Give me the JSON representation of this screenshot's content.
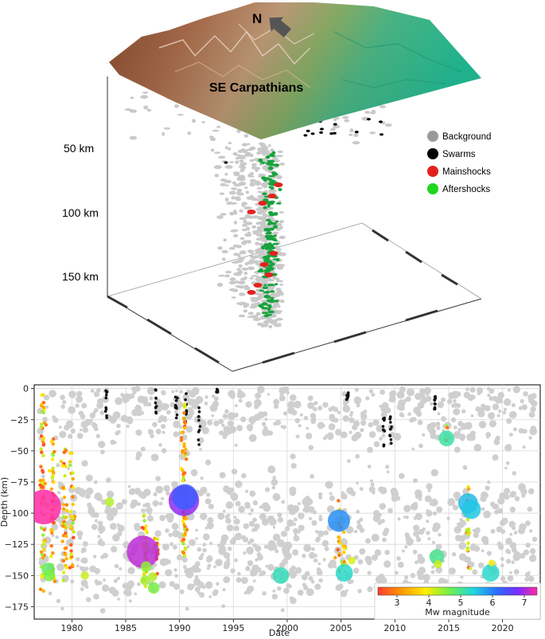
{
  "chart_data": [
    {
      "type": "scatter",
      "title": "",
      "region_label": "SE Carpathians",
      "north_label": "N",
      "depth_ticks": [
        "50 km",
        "100 km",
        "150 km"
      ],
      "legend": [
        {
          "name": "Background",
          "color": "#9a9a9a"
        },
        {
          "name": "Swarms",
          "color": "#000000"
        },
        {
          "name": "Mainshocks",
          "color": "#e3211c"
        },
        {
          "name": "Aftershocks",
          "color": "#1ed61e"
        }
      ]
    },
    {
      "type": "scatter",
      "xlabel": "Date",
      "ylabel": "Depth (km)",
      "xlim": [
        1976.5,
        2023.5
      ],
      "ylim": [
        -185,
        3
      ],
      "x_ticks": [
        1980,
        1985,
        1990,
        1995,
        2000,
        2005,
        2010,
        2015,
        2020
      ],
      "y_ticks": [
        0,
        -25,
        -50,
        -75,
        -100,
        -125,
        -150,
        -175
      ],
      "grid": true,
      "colorbar": {
        "label": "Mw magnitude",
        "range": [
          2.4,
          7.4
        ],
        "ticks": [
          3,
          4,
          5,
          6,
          7
        ]
      },
      "events": [
        {
          "x": 1977.4,
          "y": -95,
          "mag": 7.4
        },
        {
          "x": 1986.6,
          "y": -131,
          "mag": 7.1
        },
        {
          "x": 1990.4,
          "y": -90,
          "mag": 6.9
        },
        {
          "x": 1990.5,
          "y": -87,
          "mag": 6.3
        },
        {
          "x": 2004.8,
          "y": -106,
          "mag": 5.9
        },
        {
          "x": 2016.8,
          "y": -92,
          "mag": 5.6
        },
        {
          "x": 2017.1,
          "y": -97,
          "mag": 5.5
        },
        {
          "x": 2018.9,
          "y": -148,
          "mag": 5.3
        },
        {
          "x": 2005.3,
          "y": -148,
          "mag": 5.3
        },
        {
          "x": 1999.4,
          "y": -150,
          "mag": 5.2
        },
        {
          "x": 2014.8,
          "y": -40,
          "mag": 5.1
        },
        {
          "x": 2013.9,
          "y": -135,
          "mag": 5.0
        },
        {
          "x": 1977.8,
          "y": -145,
          "mag": 4.8
        },
        {
          "x": 1977.9,
          "y": -150,
          "mag": 4.6
        },
        {
          "x": 1987.6,
          "y": -160,
          "mag": 4.6
        },
        {
          "x": 1987.5,
          "y": -151,
          "mag": 4.3
        },
        {
          "x": 1983.5,
          "y": -91,
          "mag": 4.3
        },
        {
          "x": 1986.9,
          "y": -143,
          "mag": 4.5
        },
        {
          "x": 1986.8,
          "y": -154,
          "mag": 4.4
        },
        {
          "x": 2014.0,
          "y": -141,
          "mag": 4.2
        },
        {
          "x": 2006.0,
          "y": -138,
          "mag": 4.1
        },
        {
          "x": 1981.2,
          "y": -150,
          "mag": 4.2
        },
        {
          "x": 2019.0,
          "y": -140,
          "mag": 4.0
        }
      ]
    }
  ]
}
